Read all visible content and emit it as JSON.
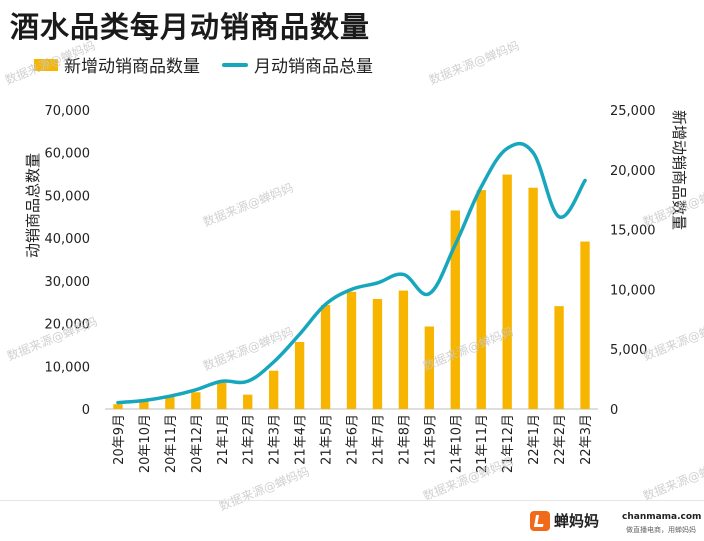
{
  "title": "酒水品类每月动销商品数量",
  "watermark_text": "数据来源@蝉妈妈",
  "brand": {
    "name": "蝉妈妈",
    "site": "chanmama.com",
    "slogan": "做直播电商，用蝉妈妈"
  },
  "colors": {
    "bar": "#f7b500",
    "line": "#17a7bd",
    "text": "#222222",
    "axis": "#bdbdbd"
  },
  "chart_data": {
    "type": "bar",
    "title": "酒水品类每月动销商品数量",
    "categories": [
      "20年9月",
      "20年10月",
      "20年11月",
      "20年12月",
      "21年1月",
      "21年2月",
      "21年3月",
      "21年4月",
      "21年5月",
      "21年6月",
      "21年7月",
      "21年8月",
      "21年9月",
      "21年10月",
      "21年11月",
      "21年12月",
      "22年1月",
      "22年2月",
      "22年3月"
    ],
    "series": [
      {
        "name": "新增动销商品数量",
        "type": "bar",
        "axis": "right",
        "values": [
          400,
          700,
          1000,
          1400,
          2200,
          1200,
          3200,
          5600,
          8700,
          9800,
          9200,
          9900,
          6900,
          16600,
          18300,
          19600,
          18500,
          8600,
          14000
        ]
      },
      {
        "name": "月动销商品总量",
        "type": "line",
        "axis": "left",
        "values": [
          1500,
          2000,
          3000,
          4500,
          6500,
          6500,
          11000,
          17500,
          24500,
          28000,
          29500,
          31500,
          27000,
          38500,
          52000,
          61000,
          60000,
          45000,
          53500
        ]
      }
    ],
    "y_left": {
      "label": "动销商品总数量",
      "ylim": [
        0,
        70000
      ],
      "ticks": [
        "0",
        "10,000",
        "20,000",
        "30,000",
        "40,000",
        "50,000",
        "60,000",
        "70,000"
      ]
    },
    "y_right": {
      "label": "新增动销商品数量",
      "ylim": [
        0,
        25000
      ],
      "ticks": [
        "0",
        "5,000",
        "10,000",
        "15,000",
        "20,000",
        "25,000"
      ]
    },
    "grid": false,
    "legend": "top-left"
  }
}
